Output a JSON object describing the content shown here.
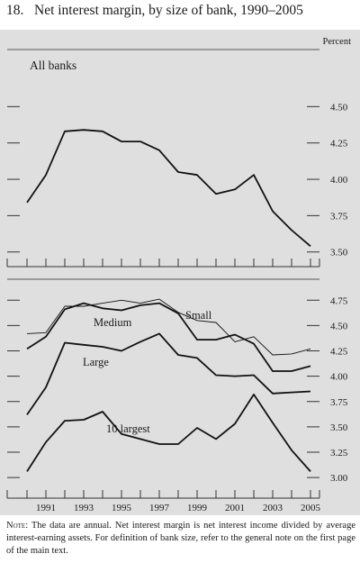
{
  "title": "18.   Net interest margin, by size of bank, 1990–2005",
  "unit_label": "Percent",
  "note": {
    "head": "Note",
    "body": ": The data are annual. Net interest margin is net interest income divided by average interest-earning assets. For definition of bank size, refer to the general note on the first page of the main text."
  },
  "chart_data": [
    {
      "type": "line",
      "panel_label": "All banks",
      "x": [
        1990,
        1991,
        1992,
        1993,
        1994,
        1995,
        1996,
        1997,
        1998,
        1999,
        2000,
        2001,
        2002,
        2003,
        2004,
        2005
      ],
      "series": [
        {
          "name": "All banks",
          "values": [
            3.84,
            4.03,
            4.33,
            4.34,
            4.33,
            4.26,
            4.26,
            4.2,
            4.05,
            4.03,
            3.9,
            3.93,
            4.03,
            3.78,
            3.65,
            3.54
          ]
        }
      ],
      "ylim": [
        3.3,
        4.75
      ],
      "yticks": [
        3.5,
        3.75,
        4.0,
        4.25,
        4.5
      ],
      "ytick_labels": [
        "3.50",
        "3.75",
        "4.00",
        "4.25",
        "4.50"
      ],
      "ylabel": "Percent",
      "grid": false
    },
    {
      "type": "line",
      "x": [
        1990,
        1991,
        1992,
        1993,
        1994,
        1995,
        1996,
        1997,
        1998,
        1999,
        2000,
        2001,
        2002,
        2003,
        2004,
        2005
      ],
      "xtick_labels": [
        "1991",
        "1993",
        "1995",
        "1997",
        "1999",
        "2001",
        "2003",
        "2005"
      ],
      "series": [
        {
          "name": "Small",
          "values": [
            4.42,
            4.43,
            4.69,
            4.69,
            4.72,
            4.75,
            4.72,
            4.76,
            4.63,
            4.55,
            4.53,
            4.34,
            4.39,
            4.21,
            4.22,
            4.27
          ],
          "stroke": "thin"
        },
        {
          "name": "Medium",
          "values": [
            4.27,
            4.39,
            4.66,
            4.72,
            4.67,
            4.65,
            4.7,
            4.72,
            4.62,
            4.36,
            4.36,
            4.41,
            4.32,
            4.05,
            4.05,
            4.1
          ],
          "stroke": "bold"
        },
        {
          "name": "Large",
          "values": [
            3.62,
            3.89,
            4.33,
            4.31,
            4.29,
            4.25,
            4.34,
            4.42,
            4.21,
            4.18,
            4.01,
            4.0,
            4.01,
            3.83,
            3.84,
            3.85
          ],
          "stroke": "bold"
        },
        {
          "name": "10 largest",
          "values": [
            3.06,
            3.35,
            3.56,
            3.57,
            3.65,
            3.43,
            3.38,
            3.33,
            3.33,
            3.49,
            3.38,
            3.53,
            3.82,
            3.54,
            3.27,
            3.06
          ],
          "stroke": "bold"
        }
      ],
      "ylim": [
        2.85,
        4.85
      ],
      "yticks": [
        3.0,
        3.25,
        3.5,
        3.75,
        4.0,
        4.25,
        4.5,
        4.75
      ],
      "ytick_labels": [
        "3.00",
        "3.25",
        "3.50",
        "3.75",
        "4.00",
        "4.25",
        "4.50",
        "4.75"
      ],
      "grid": false
    }
  ]
}
